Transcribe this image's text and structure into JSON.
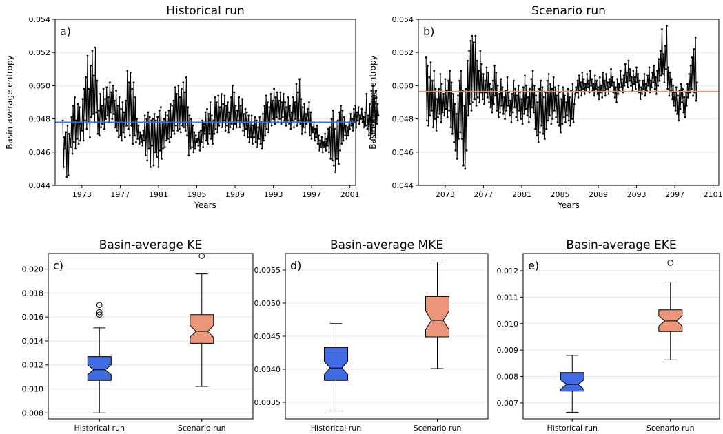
{
  "chart_data": [
    {
      "type": "line",
      "panel_label": "a)",
      "title": "Historical run",
      "xlabel": "Years",
      "ylabel": "Basin-average entropy",
      "xlim": [
        1970.2,
        2001.6
      ],
      "ylim": [
        0.044,
        0.054
      ],
      "xticks": [
        1973,
        1977,
        1981,
        1985,
        1989,
        1993,
        1997,
        2001
      ],
      "yticks": [
        0.044,
        0.046,
        0.048,
        0.05,
        0.052,
        0.054
      ],
      "x_start": 1971.0,
      "step": 0.0833,
      "grid": "horizontal",
      "mean_line": {
        "value": 0.0478,
        "color": "#3a6fd8"
      },
      "series": [
        {
          "values": [
            0.0479,
            0.0451,
            0.0469,
            0.0462,
            0.0472,
            0.0445,
            0.0476,
            0.0446,
            0.0471,
            0.0468,
            0.0463,
            0.0481,
            0.0459,
            0.0488,
            0.0466,
            0.0493,
            0.0462,
            0.0479,
            0.0468,
            0.0489,
            0.0465,
            0.0487,
            0.0467,
            0.0477,
            0.0473,
            0.0492,
            0.0467,
            0.0498,
            0.0479,
            0.0505,
            0.0474,
            0.0518,
            0.0478,
            0.0498,
            0.0469,
            0.0512,
            0.0481,
            0.0521,
            0.0483,
            0.0506,
            0.0478,
            0.0523,
            0.0484,
            0.0503,
            0.0471,
            0.0485,
            0.047,
            0.0495,
            0.0475,
            0.0488,
            0.0477,
            0.0498,
            0.0474,
            0.0492,
            0.048,
            0.0499,
            0.0482,
            0.0493,
            0.0478,
            0.0502,
            0.0484,
            0.0496,
            0.048,
            0.05,
            0.0483,
            0.0491,
            0.0475,
            0.0497,
            0.0473,
            0.0488,
            0.0469,
            0.0493,
            0.047,
            0.0486,
            0.0467,
            0.049,
            0.0472,
            0.0484,
            0.0469,
            0.0491,
            0.0476,
            0.0509,
            0.0474,
            0.0502,
            0.047,
            0.0508,
            0.0476,
            0.0498,
            0.0465,
            0.0502,
            0.047,
            0.0493,
            0.0466,
            0.048,
            0.0468,
            0.0476,
            0.0465,
            0.0472,
            0.0466,
            0.047,
            0.0464,
            0.0473,
            0.0467,
            0.0482,
            0.0458,
            0.048,
            0.0455,
            0.0484,
            0.0462,
            0.0481,
            0.0451,
            0.0479,
            0.0464,
            0.048,
            0.0452,
            0.0483,
            0.046,
            0.0479,
            0.0457,
            0.0481,
            0.0451,
            0.0485,
            0.0461,
            0.0487,
            0.0456,
            0.0478,
            0.0462,
            0.048,
            0.0463,
            0.0484,
            0.0467,
            0.0482,
            0.0468,
            0.0485,
            0.0466,
            0.0489,
            0.0469,
            0.0488,
            0.0473,
            0.0491,
            0.0471,
            0.0499,
            0.0476,
            0.0495,
            0.0473,
            0.05,
            0.0474,
            0.0493,
            0.0472,
            0.0498,
            0.0476,
            0.0502,
            0.0475,
            0.0496,
            0.0473,
            0.0505,
            0.047,
            0.0487,
            0.0458,
            0.0482,
            0.0462,
            0.048,
            0.0463,
            0.0476,
            0.046,
            0.0472,
            0.0462,
            0.047,
            0.0466,
            0.0468,
            0.0464,
            0.0472,
            0.0461,
            0.0473,
            0.0466,
            0.0479,
            0.0463,
            0.0477,
            0.0471,
            0.0484,
            0.0467,
            0.0486,
            0.0465,
            0.0483,
            0.0471,
            0.049,
            0.0468,
            0.0482,
            0.0465,
            0.0479,
            0.0471,
            0.0493,
            0.0474,
            0.049,
            0.0472,
            0.0494,
            0.0476,
            0.0487,
            0.0478,
            0.0495,
            0.0475,
            0.0489,
            0.0479,
            0.0494,
            0.0473,
            0.0488,
            0.0476,
            0.049,
            0.0472,
            0.0484,
            0.0475,
            0.0493,
            0.0477,
            0.05,
            0.0474,
            0.0496,
            0.0477,
            0.0488,
            0.0475,
            0.0485,
            0.0479,
            0.0493,
            0.0475,
            0.0488,
            0.0478,
            0.0492,
            0.0473,
            0.0483,
            0.047,
            0.0486,
            0.0474,
            0.0484,
            0.0469,
            0.0482,
            0.0466,
            0.0478,
            0.0469,
            0.0482,
            0.0465,
            0.0476,
            0.0469,
            0.0481,
            0.0466,
            0.0479,
            0.0463,
            0.0475,
            0.0468,
            0.0481,
            0.0465,
            0.0478,
            0.0462,
            0.0483,
            0.0467,
            0.0488,
            0.047,
            0.0494,
            0.0474,
            0.049,
            0.0472,
            0.0487,
            0.0478,
            0.0495,
            0.0476,
            0.0491,
            0.048,
            0.0498,
            0.0477,
            0.0493,
            0.0481,
            0.0496,
            0.0478,
            0.0491,
            0.048,
            0.0496,
            0.0477,
            0.049,
            0.0481,
            0.0495,
            0.0479,
            0.049,
            0.0476,
            0.0487,
            0.0479,
            0.0493,
            0.0477,
            0.0488,
            0.0474,
            0.0484,
            0.0479,
            0.0493,
            0.0475,
            0.049,
            0.048,
            0.0501,
            0.0476,
            0.0496,
            0.0479,
            0.0504,
            0.0477,
            0.0492,
            0.0471,
            0.0487,
            0.0475,
            0.0489,
            0.0472,
            0.0483,
            0.0477,
            0.0486,
            0.0479,
            0.049,
            0.047,
            0.0484,
            0.0468,
            0.0475,
            0.0472,
            0.0478,
            0.0467,
            0.0474,
            0.0469,
            0.0476,
            0.0465,
            0.047,
            0.0461,
            0.0467,
            0.0463,
            0.0469,
            0.046,
            0.0466,
            0.0463,
            0.0471,
            0.0461,
            0.0468,
            0.0464,
            0.0474,
            0.046,
            0.0475,
            0.0456,
            0.048,
            0.0455,
            0.0485,
            0.0452,
            0.0474,
            0.0448,
            0.0478,
            0.0456,
            0.0479,
            0.0453,
            0.0484,
            0.0461,
            0.0488,
            0.0465,
            0.0485,
            0.0467,
            0.0481,
            0.047,
            0.0476,
            0.0468,
            0.0475,
            0.047,
            0.0478,
            0.0474,
            0.0483,
            0.0476,
            0.048,
            0.0473,
            0.0486,
            0.0478,
            0.0488,
            0.0475,
            0.0484,
            0.0479,
            0.0487,
            0.0477,
            0.0482,
            0.048,
            0.0486,
            0.0478,
            0.0481,
            0.0475,
            0.0484,
            0.0476,
            0.0495,
            0.0474,
            0.0482,
            0.047,
            0.0489,
            0.0468,
            0.0497,
            0.0471,
            0.05,
            0.0478,
            0.0494,
            0.047,
            0.0497,
            0.0477,
            0.0489,
            0.0482
          ]
        }
      ]
    },
    {
      "type": "line",
      "panel_label": "b)",
      "title": "Scenario run",
      "xlabel": "Years",
      "ylabel": "Basin-average entropy",
      "xlim": [
        2070.2,
        2101.6
      ],
      "ylim": [
        0.044,
        0.054
      ],
      "xticks": [
        2073,
        2077,
        2081,
        2085,
        2089,
        2093,
        2097,
        2101
      ],
      "yticks": [
        0.044,
        0.046,
        0.048,
        0.05,
        0.052,
        0.054
      ],
      "x_start": 2071.0,
      "step": 0.0833,
      "grid": "horizontal",
      "mean_line": {
        "value": 0.04965,
        "color": "#e8906e"
      },
      "series": [
        {
          "values": [
            0.0517,
            0.0479,
            0.0512,
            0.0476,
            0.0505,
            0.0482,
            0.0514,
            0.0485,
            0.0503,
            0.0475,
            0.0509,
            0.048,
            0.0498,
            0.0473,
            0.0492,
            0.0481,
            0.0498,
            0.0483,
            0.0507,
            0.0478,
            0.0501,
            0.0484,
            0.0495,
            0.0482,
            0.0504,
            0.0486,
            0.0497,
            0.0481,
            0.0503,
            0.0485,
            0.0509,
            0.0475,
            0.0502,
            0.0471,
            0.0495,
            0.0466,
            0.0489,
            0.0461,
            0.0483,
            0.0456,
            0.0494,
            0.0468,
            0.0503,
            0.0472,
            0.0509,
            0.0468,
            0.0497,
            0.0452,
            0.0488,
            0.045,
            0.0498,
            0.0461,
            0.0515,
            0.0482,
            0.0521,
            0.0489,
            0.0527,
            0.0485,
            0.053,
            0.049,
            0.0526,
            0.0492,
            0.053,
            0.0488,
            0.0515,
            0.0493,
            0.0509,
            0.049,
            0.0521,
            0.0496,
            0.0513,
            0.0492,
            0.0507,
            0.0489,
            0.0503,
            0.0496,
            0.0511,
            0.0493,
            0.0508,
            0.049,
            0.0501,
            0.0487,
            0.0498,
            0.0484,
            0.0503,
            0.0489,
            0.0512,
            0.0494,
            0.0508,
            0.0485,
            0.05,
            0.0481,
            0.0495,
            0.0484,
            0.0504,
            0.0488,
            0.0499,
            0.0483,
            0.0493,
            0.048,
            0.0497,
            0.0485,
            0.0505,
            0.0488,
            0.0496,
            0.0482,
            0.0491,
            0.0478,
            0.0495,
            0.0484,
            0.0503,
            0.0487,
            0.0498,
            0.0481,
            0.0494,
            0.0479,
            0.05,
            0.0485,
            0.0496,
            0.048,
            0.0492,
            0.0477,
            0.0499,
            0.0483,
            0.0506,
            0.0486,
            0.05,
            0.0482,
            0.0493,
            0.0478,
            0.0498,
            0.0481,
            0.0504,
            0.0487,
            0.0509,
            0.0484,
            0.05,
            0.0474,
            0.0494,
            0.047,
            0.049,
            0.0466,
            0.0498,
            0.0472,
            0.0503,
            0.0476,
            0.0499,
            0.0471,
            0.0493,
            0.0468,
            0.0496,
            0.0474,
            0.0503,
            0.0479,
            0.0507,
            0.0482,
            0.0501,
            0.0477,
            0.0498,
            0.048,
            0.0505,
            0.0485,
            0.0499,
            0.0481,
            0.0494,
            0.0478,
            0.05,
            0.0476,
            0.0496,
            0.0472,
            0.0492,
            0.0477,
            0.0499,
            0.0481,
            0.0494,
            0.0478,
            0.049,
            0.0482,
            0.0498,
            0.0479,
            0.0493,
            0.0476,
            0.0497,
            0.048,
            0.0501,
            0.0478,
            0.0489,
            0.0495,
            0.0499,
            0.0496,
            0.0503,
            0.0493,
            0.0506,
            0.0497,
            0.0502,
            0.0494,
            0.0508,
            0.0498,
            0.0504,
            0.0495,
            0.0501,
            0.0497,
            0.0507,
            0.0499,
            0.0503,
            0.0496,
            0.0509,
            0.05,
            0.0504,
            0.0497,
            0.0501,
            0.0494,
            0.0506,
            0.0498,
            0.0503,
            0.0495,
            0.0499,
            0.0492,
            0.0505,
            0.0496,
            0.05,
            0.0493,
            0.0508,
            0.0497,
            0.0503,
            0.0494,
            0.0507,
            0.0498,
            0.0502,
            0.0495,
            0.0504,
            0.0499,
            0.051,
            0.05,
            0.0505,
            0.0496,
            0.0502,
            0.0493,
            0.0499,
            0.049,
            0.0504,
            0.0495,
            0.0501,
            0.0497,
            0.0509,
            0.0499,
            0.0504,
            0.0496,
            0.0506,
            0.05,
            0.0513,
            0.0502,
            0.0508,
            0.0499,
            0.0515,
            0.0503,
            0.051,
            0.05,
            0.0505,
            0.0497,
            0.0509,
            0.0501,
            0.0505,
            0.0498,
            0.0511,
            0.0502,
            0.0507,
            0.0496,
            0.0503,
            0.0492,
            0.0499,
            0.0495,
            0.0503,
            0.0498,
            0.0507,
            0.0494,
            0.0501,
            0.0497,
            0.0506,
            0.05,
            0.0511,
            0.0496,
            0.0503,
            0.0499,
            0.0508,
            0.0502,
            0.0512,
            0.0498,
            0.0505,
            0.0495,
            0.0509,
            0.05,
            0.0516,
            0.0503,
            0.0521,
            0.0506,
            0.0534,
            0.0507,
            0.0519,
            0.0502,
            0.0524,
            0.051,
            0.0536,
            0.0498,
            0.0511,
            0.0494,
            0.0508,
            0.0497,
            0.0504,
            0.0492,
            0.05,
            0.0488,
            0.0496,
            0.0485,
            0.0499,
            0.0483,
            0.0494,
            0.0479,
            0.0497,
            0.0486,
            0.0501,
            0.049,
            0.0498,
            0.0484,
            0.0493,
            0.0481,
            0.0496,
            0.0488,
            0.0501,
            0.0493,
            0.0507,
            0.0496,
            0.0512,
            0.0498,
            0.0517,
            0.0494,
            0.0522,
            0.0496,
            0.0529,
            0.0491,
            0.0502
          ]
        }
      ]
    },
    {
      "type": "box",
      "panel_label": "c)",
      "title": "Basin-average KE",
      "categories": [
        "Historical run",
        "Scenario run"
      ],
      "ylim": [
        0.0075,
        0.0213
      ],
      "yticks": [
        0.008,
        0.01,
        0.012,
        0.014,
        0.016,
        0.018,
        0.02
      ],
      "tick_decimals": 3,
      "grid": "horizontal",
      "boxes": [
        {
          "whisker_low": 0.008,
          "q1": 0.0107,
          "median": 0.0116,
          "q3": 0.0127,
          "whisker_high": 0.0151,
          "notch_low": 0.0112,
          "notch_high": 0.012,
          "outliers": [
            0.0162,
            0.0164,
            0.017
          ],
          "color": "#4169e1"
        },
        {
          "whisker_low": 0.0102,
          "q1": 0.0138,
          "median": 0.0148,
          "q3": 0.0162,
          "whisker_high": 0.0196,
          "notch_low": 0.0143,
          "notch_high": 0.0153,
          "outliers": [
            0.0211
          ],
          "color": "#e9967a"
        }
      ]
    },
    {
      "type": "box",
      "panel_label": "d)",
      "title": "Basin-average MKE",
      "categories": [
        "Historical run",
        "Scenario run"
      ],
      "ylim": [
        0.00325,
        0.00575
      ],
      "yticks": [
        0.0035,
        0.004,
        0.0045,
        0.005,
        0.0055
      ],
      "tick_decimals": 4,
      "grid": "horizontal",
      "boxes": [
        {
          "whisker_low": 0.00337,
          "q1": 0.00383,
          "median": 0.00402,
          "q3": 0.00433,
          "whisker_high": 0.00469,
          "notch_low": 0.00392,
          "notch_high": 0.00412,
          "outliers": [],
          "color": "#4169e1"
        },
        {
          "whisker_low": 0.00401,
          "q1": 0.00449,
          "median": 0.00474,
          "q3": 0.0051,
          "whisker_high": 0.00562,
          "notch_low": 0.0046,
          "notch_high": 0.00488,
          "outliers": [],
          "color": "#e9967a"
        }
      ]
    },
    {
      "type": "box",
      "panel_label": "e)",
      "title": "Basin-average EKE",
      "categories": [
        "Historical run",
        "Scenario run"
      ],
      "ylim": [
        0.0064,
        0.01265
      ],
      "yticks": [
        0.007,
        0.008,
        0.009,
        0.01,
        0.011,
        0.012
      ],
      "tick_decimals": 3,
      "grid": "horizontal",
      "boxes": [
        {
          "whisker_low": 0.00665,
          "q1": 0.00745,
          "median": 0.0077,
          "q3": 0.00815,
          "whisker_high": 0.0088,
          "notch_low": 0.00752,
          "notch_high": 0.00788,
          "outliers": [],
          "color": "#4169e1"
        },
        {
          "whisker_low": 0.00863,
          "q1": 0.0097,
          "median": 0.0101,
          "q3": 0.01052,
          "whisker_high": 0.01157,
          "notch_low": 0.0099,
          "notch_high": 0.0103,
          "outliers": [
            0.0123
          ],
          "color": "#e9967a"
        }
      ]
    }
  ]
}
